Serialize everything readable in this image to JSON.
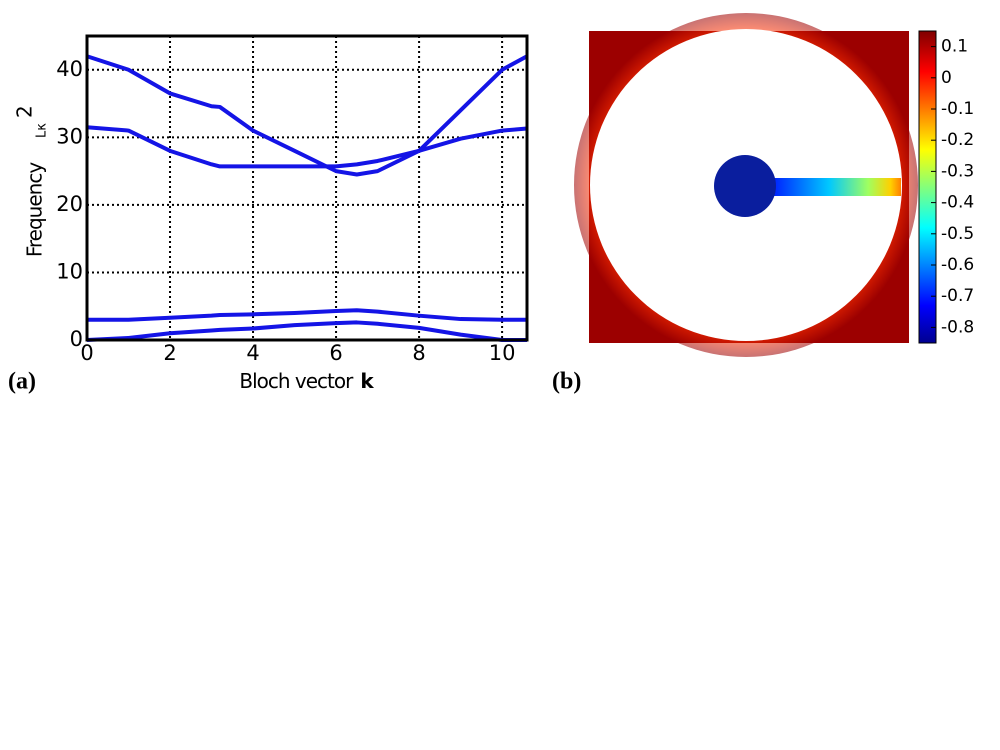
{
  "chart_data": [
    {
      "type": "line",
      "panel_label": "(a)",
      "ylabel": "Frequency",
      "ylabel_sub": "Lκ",
      "ylabel_sup": "2",
      "xlabel": "Bloch vector",
      "xlabel_bold": "k",
      "x": [
        0,
        1,
        2,
        3,
        3.2,
        4,
        5,
        6,
        6.5,
        7,
        8,
        9,
        10,
        10.6
      ],
      "series": [
        {
          "color": "#1414e6",
          "values": [
            42,
            40,
            36.5,
            34.6,
            34.5,
            31,
            28,
            25,
            24.5,
            25,
            28,
            34,
            40,
            42
          ]
        },
        {
          "color": "#1414e6",
          "values": [
            31.5,
            31,
            28,
            26,
            25.7,
            25.7,
            25.7,
            25.7,
            26,
            26.5,
            28,
            29.8,
            31,
            31.3
          ]
        },
        {
          "color": "#1414e6",
          "values": [
            3,
            3,
            3.3,
            3.6,
            3.7,
            3.8,
            4,
            4.3,
            4.4,
            4.2,
            3.6,
            3.1,
            3,
            3
          ]
        },
        {
          "color": "#1414e6",
          "values": [
            0,
            0.3,
            1,
            1.4,
            1.5,
            1.7,
            2.2,
            2.5,
            2.6,
            2.4,
            1.8,
            0.8,
            0,
            0
          ]
        }
      ],
      "xlim": [
        0,
        10.6
      ],
      "xticks": [
        0,
        2,
        4,
        6,
        8,
        10
      ],
      "ylim": [
        0,
        45
      ],
      "yticks": [
        0,
        10,
        20,
        30,
        40
      ],
      "grid": true
    },
    {
      "type": "colormap",
      "panel_label": "(b)",
      "clim": [
        -0.85,
        0.15
      ],
      "cticks": [
        0.1,
        0,
        -0.1,
        -0.2,
        -0.3,
        -0.4,
        -0.5,
        -0.6,
        -0.7,
        -0.8
      ]
    }
  ]
}
